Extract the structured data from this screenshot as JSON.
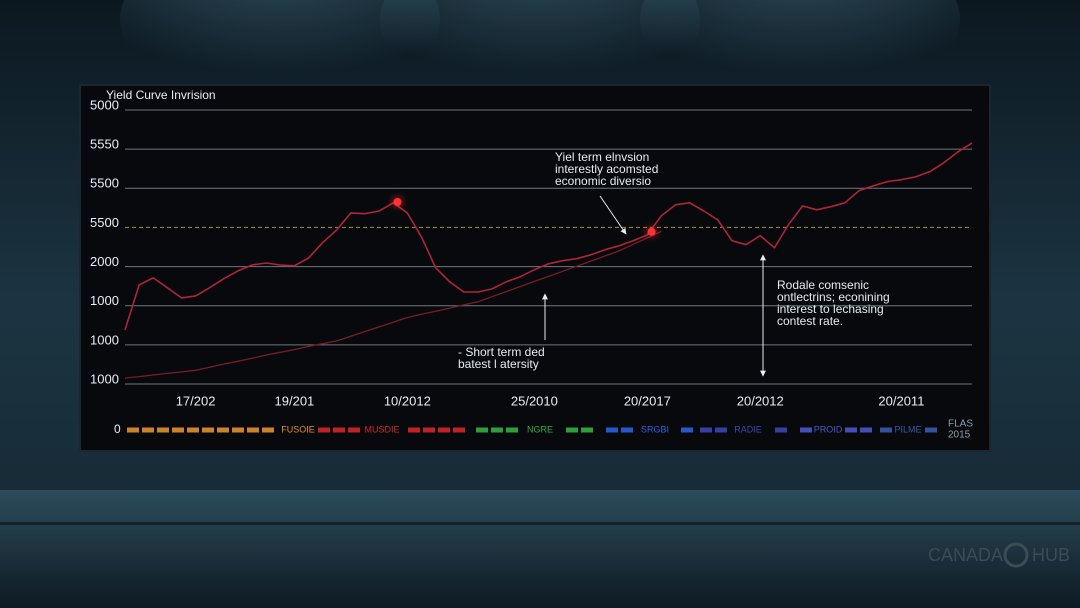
{
  "chart_data": {
    "type": "line",
    "title": "Yield Curve Invrision",
    "xlim": [
      0,
      60
    ],
    "xticks": [
      {
        "value": 5,
        "label": "17/202"
      },
      {
        "value": 12,
        "label": "19/201"
      },
      {
        "value": 20,
        "label": "10/2012"
      },
      {
        "value": 29,
        "label": "25/2010"
      },
      {
        "value": 37,
        "label": "20/2017"
      },
      {
        "value": 45,
        "label": "20/2012"
      },
      {
        "value": 55,
        "label": "20/2011"
      }
    ],
    "ylim": [
      0,
      7
    ],
    "yticks": [
      {
        "value": 0,
        "label": "1000"
      },
      {
        "value": 1,
        "label": "1000"
      },
      {
        "value": 2,
        "label": "1000"
      },
      {
        "value": 3,
        "label": "2000"
      },
      {
        "value": 4,
        "label": "5500",
        "style": "dashed"
      },
      {
        "value": 5,
        "label": "5500"
      },
      {
        "value": 6,
        "label": "5550"
      },
      {
        "value": 7,
        "label": "5000"
      }
    ],
    "grid": true,
    "series": [
      {
        "color": "#b0243a",
        "values": [
          1.38,
          2.53,
          2.71,
          2.46,
          2.2,
          2.25,
          2.46,
          2.69,
          2.89,
          3.04,
          3.09,
          3.04,
          3.02,
          3.22,
          3.61,
          3.94,
          4.37,
          4.35,
          4.42,
          4.63,
          4.37,
          3.76,
          2.97,
          2.61,
          2.35,
          2.35,
          2.43,
          2.61,
          2.74,
          2.92,
          3.07,
          3.15,
          3.2,
          3.3,
          3.43,
          3.53,
          3.66,
          3.81,
          4.3,
          4.58,
          4.63,
          4.42,
          4.19,
          3.66,
          3.56,
          3.79,
          3.48,
          4.07,
          4.55,
          4.45,
          4.53,
          4.63,
          4.94,
          5.06,
          5.17,
          5.22,
          5.29,
          5.42,
          5.65,
          5.93,
          6.16
        ]
      },
      {
        "color": "#7a1c2a",
        "values": [
          0.15,
          0.19,
          0.23,
          0.27,
          0.31,
          0.35,
          0.43,
          0.51,
          0.58,
          0.66,
          0.74,
          0.81,
          0.88,
          0.96,
          1.03,
          1.1,
          1.22,
          1.34,
          1.46,
          1.58,
          1.7,
          1.78,
          1.86,
          1.94,
          2.02,
          2.1,
          2.23,
          2.36,
          2.49,
          2.62,
          2.75,
          2.88,
          3.01,
          3.14,
          3.27,
          3.4,
          3.57,
          3.73,
          3.9,
          null,
          null,
          null,
          null,
          null,
          null,
          null,
          null,
          null,
          null,
          null,
          null,
          null,
          null,
          null,
          null,
          null,
          null,
          null,
          null,
          null,
          null
        ]
      }
    ],
    "highlights": [
      {
        "x": 19.3,
        "y": 4.65,
        "color": "#ff3030"
      },
      {
        "x": 37.3,
        "y": 3.89,
        "color": "#ff3030"
      }
    ],
    "annotations": [
      {
        "lines": [
          "Yiel term elnvsion",
          "interestly acomsted",
          "economic diversio"
        ]
      },
      {
        "lines": [
          "- Short term ded",
          "batest l atersity"
        ]
      },
      {
        "lines": [
          "Rodale comsenic",
          "ontlectrins; econining",
          "interest to lechasing",
          "contest rate."
        ]
      }
    ],
    "legend_strip": {
      "start_label": "0",
      "items": [
        {
          "label": "FUSOIE",
          "color": "#e39030"
        },
        {
          "label": "MUSDIE",
          "color": "#d42828"
        },
        {
          "label": "NGRE",
          "color": "#33b040"
        },
        {
          "label": "SRGBI",
          "color": "#2a62e0"
        },
        {
          "label": "RADIE",
          "color": "#3a48b0"
        },
        {
          "label": "PROID",
          "color": "#4a58c8"
        },
        {
          "label": "PILME",
          "color": "#3a5aa8"
        }
      ],
      "end_label": [
        "FLAS",
        "2015"
      ]
    },
    "watermark": [
      "CANADA",
      "HUB"
    ]
  }
}
